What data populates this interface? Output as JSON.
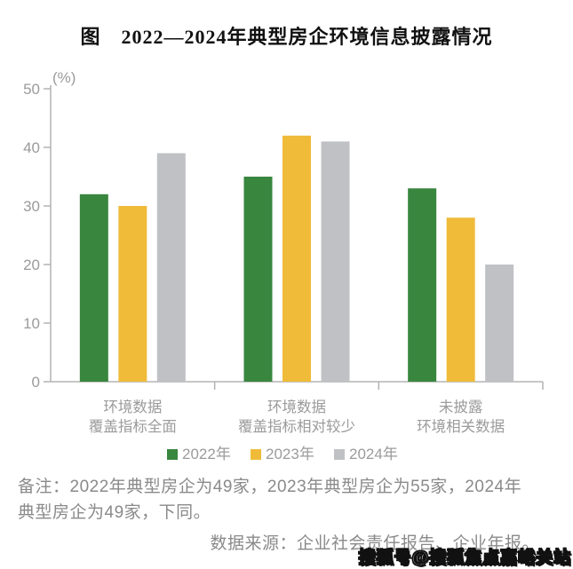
{
  "page": {
    "title": "图　2022—2024年典型房企环境信息披露情况",
    "note_line": "备注：2022年典型房企为49家，2023年典型房企为55家，2024年典型房企为49家，下同。",
    "source_line": "数据来源：企业社会责任报告、企业年报。",
    "watermark": "搜狐号@搜狐焦点嘉峪关站"
  },
  "chart_data": {
    "type": "bar",
    "title": "图　2022—2024年典型房企环境信息披露情况",
    "unit_label": "(%)",
    "categories": [
      [
        "环境数据",
        "覆盖指标全面"
      ],
      [
        "环境数据",
        "覆盖指标相对较少"
      ],
      [
        "未披露",
        "环境相关数据"
      ]
    ],
    "series": [
      {
        "name": "2022年",
        "color": "#39863F",
        "values": [
          32,
          35,
          33
        ]
      },
      {
        "name": "2023年",
        "color": "#EFBB39",
        "values": [
          30,
          42,
          28
        ]
      },
      {
        "name": "2024年",
        "color": "#BFC1C4",
        "values": [
          39,
          41,
          20
        ]
      }
    ],
    "ylim": [
      0,
      50
    ],
    "yticks": [
      0,
      10,
      20,
      30,
      40,
      50
    ],
    "grid": false,
    "legend_position": "bottom",
    "axis_color": "#b3b3b3",
    "label_color": "#9b9b9b"
  }
}
